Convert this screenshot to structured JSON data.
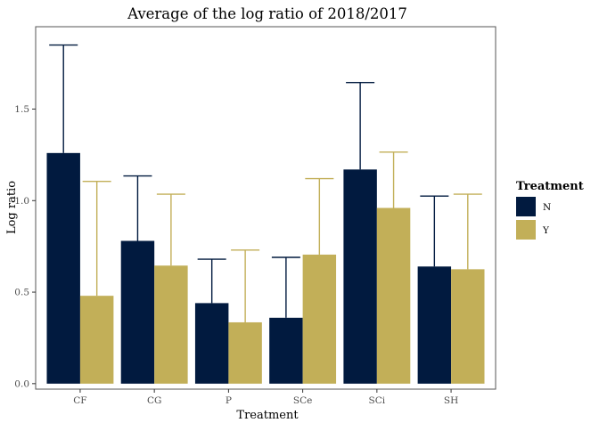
{
  "chart_data": {
    "type": "bar",
    "title": "Average of the log ratio of 2018/2017",
    "xlabel": "Treatment",
    "ylabel": "Log ratio",
    "categories": [
      "CF",
      "CG",
      "P",
      "SCe",
      "SCi",
      "SH"
    ],
    "ylim": [
      -0.03,
      1.95
    ],
    "yticks": [
      0.0,
      0.5,
      1.0,
      1.5
    ],
    "ytick_labels": [
      "0.0",
      "0.5",
      "1.0",
      "1.5"
    ],
    "grid": false,
    "legend": {
      "title": "Treatment",
      "position": "right"
    },
    "series": [
      {
        "name": "N",
        "color": "#011a3f",
        "values": [
          1.26,
          0.78,
          0.44,
          0.36,
          1.17,
          0.64
        ],
        "error_upper": [
          1.85,
          1.135,
          0.68,
          0.69,
          1.645,
          1.025
        ]
      },
      {
        "name": "Y",
        "color": "#c2af58",
        "values": [
          0.48,
          0.645,
          0.335,
          0.705,
          0.96,
          0.625
        ],
        "error_upper": [
          1.105,
          1.035,
          0.73,
          1.12,
          1.265,
          1.035
        ]
      }
    ]
  }
}
